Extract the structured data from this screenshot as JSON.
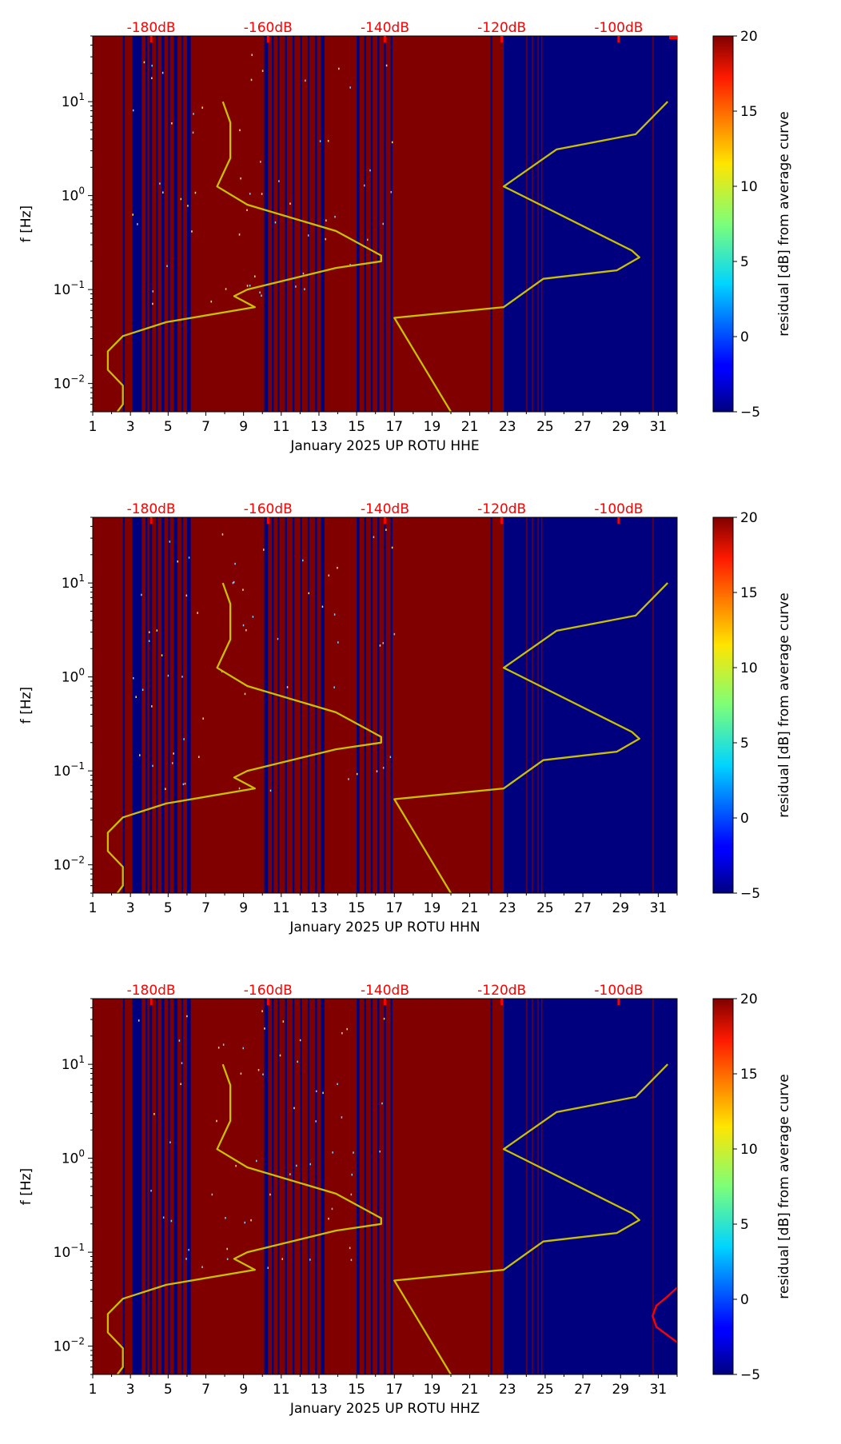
{
  "chart_data": [
    {
      "type": "heatmap",
      "name": "HHE",
      "xlabel": "January 2025 UP ROTU  HHE",
      "ylabel": "f [Hz]",
      "x_ticks": [
        "1",
        "3",
        "5",
        "7",
        "9",
        "11",
        "13",
        "15",
        "17",
        "19",
        "21",
        "23",
        "25",
        "27",
        "29",
        "31"
      ],
      "xlim": [
        1,
        32
      ],
      "ylim": [
        0.005,
        50
      ],
      "y_ticks": [
        {
          "value": 0.01,
          "base": "10",
          "exp": "−2"
        },
        {
          "value": 0.1,
          "base": "10",
          "exp": "−1"
        },
        {
          "value": 1,
          "base": "10",
          "exp": "0"
        },
        {
          "value": 10,
          "base": "10",
          "exp": "1"
        }
      ],
      "top_labels": [
        {
          "day": 4.1,
          "label": "-180dB"
        },
        {
          "day": 10.3,
          "label": "-160dB"
        },
        {
          "day": 16.5,
          "label": "-140dB"
        },
        {
          "day": 22.7,
          "label": "-120dB"
        },
        {
          "day": 28.9,
          "label": "-100dB"
        }
      ],
      "colorbar": {
        "label": "residual [dB] from average curve",
        "min": -5,
        "max": 20,
        "ticks": [
          "20",
          "15",
          "10",
          "5",
          "0",
          "−5"
        ]
      },
      "pdf_curve": [
        [
          7.9,
          10
        ],
        [
          8.3,
          6
        ],
        [
          8.3,
          2.5
        ],
        [
          7.6,
          1.25
        ],
        [
          9.2,
          0.8
        ],
        [
          13.9,
          0.42
        ],
        [
          16.3,
          0.23
        ],
        [
          16.3,
          0.2
        ],
        [
          13.9,
          0.17
        ],
        [
          9.2,
          0.1
        ],
        [
          8.5,
          0.085
        ],
        [
          9.6,
          0.065
        ],
        [
          4.9,
          0.045
        ],
        [
          2.6,
          0.032
        ],
        [
          1.8,
          0.022
        ],
        [
          1.8,
          0.014
        ],
        [
          2.6,
          0.0095
        ],
        [
          2.6,
          0.006
        ],
        [
          2.3,
          0.005
        ]
      ],
      "max_curve": [
        [
          31.5,
          10
        ],
        [
          29.8,
          4.5
        ],
        [
          25.6,
          3.1
        ],
        [
          22.8,
          1.25
        ],
        [
          29.6,
          0.26
        ],
        [
          30.0,
          0.22
        ],
        [
          28.8,
          0.16
        ],
        [
          24.9,
          0.13
        ],
        [
          22.8,
          0.065
        ],
        [
          17.0,
          0.05
        ],
        [
          20.0,
          0.005
        ]
      ]
    },
    {
      "type": "heatmap",
      "name": "HHN",
      "xlabel": "January 2025 UP ROTU  HHN",
      "ylabel": "f [Hz]",
      "x_ticks": [
        "1",
        "3",
        "5",
        "7",
        "9",
        "11",
        "13",
        "15",
        "17",
        "19",
        "21",
        "23",
        "25",
        "27",
        "29",
        "31"
      ],
      "xlim": [
        1,
        32
      ],
      "ylim": [
        0.005,
        50
      ],
      "y_ticks": [
        {
          "value": 0.01,
          "base": "10",
          "exp": "−2"
        },
        {
          "value": 0.1,
          "base": "10",
          "exp": "−1"
        },
        {
          "value": 1,
          "base": "10",
          "exp": "0"
        },
        {
          "value": 10,
          "base": "10",
          "exp": "1"
        }
      ],
      "top_labels": [
        {
          "day": 4.1,
          "label": "-180dB"
        },
        {
          "day": 10.3,
          "label": "-160dB"
        },
        {
          "day": 16.5,
          "label": "-140dB"
        },
        {
          "day": 22.7,
          "label": "-120dB"
        },
        {
          "day": 28.9,
          "label": "-100dB"
        }
      ],
      "colorbar": {
        "label": "residual [dB] from average curve",
        "min": -5,
        "max": 20,
        "ticks": [
          "20",
          "15",
          "10",
          "5",
          "0",
          "−5"
        ]
      },
      "pdf_curve": [
        [
          7.9,
          10
        ],
        [
          8.3,
          6
        ],
        [
          8.3,
          2.5
        ],
        [
          7.6,
          1.25
        ],
        [
          9.2,
          0.8
        ],
        [
          13.9,
          0.42
        ],
        [
          16.3,
          0.23
        ],
        [
          16.3,
          0.2
        ],
        [
          13.9,
          0.17
        ],
        [
          9.2,
          0.1
        ],
        [
          8.5,
          0.085
        ],
        [
          9.6,
          0.065
        ],
        [
          4.9,
          0.045
        ],
        [
          2.6,
          0.032
        ],
        [
          1.8,
          0.022
        ],
        [
          1.8,
          0.014
        ],
        [
          2.6,
          0.0095
        ],
        [
          2.6,
          0.006
        ],
        [
          2.3,
          0.005
        ]
      ],
      "max_curve": [
        [
          31.5,
          10
        ],
        [
          29.8,
          4.5
        ],
        [
          25.6,
          3.1
        ],
        [
          22.8,
          1.25
        ],
        [
          29.6,
          0.26
        ],
        [
          30.0,
          0.22
        ],
        [
          28.8,
          0.16
        ],
        [
          24.9,
          0.13
        ],
        [
          22.8,
          0.065
        ],
        [
          17.0,
          0.05
        ],
        [
          20.0,
          0.005
        ]
      ]
    },
    {
      "type": "heatmap",
      "name": "HHZ",
      "xlabel": "January 2025 UP ROTU  HHZ",
      "ylabel": "f [Hz]",
      "x_ticks": [
        "1",
        "3",
        "5",
        "7",
        "9",
        "11",
        "13",
        "15",
        "17",
        "19",
        "21",
        "23",
        "25",
        "27",
        "29",
        "31"
      ],
      "xlim": [
        1,
        32
      ],
      "ylim": [
        0.005,
        50
      ],
      "y_ticks": [
        {
          "value": 0.01,
          "base": "10",
          "exp": "−2"
        },
        {
          "value": 0.1,
          "base": "10",
          "exp": "−1"
        },
        {
          "value": 1,
          "base": "10",
          "exp": "0"
        },
        {
          "value": 10,
          "base": "10",
          "exp": "1"
        }
      ],
      "top_labels": [
        {
          "day": 4.1,
          "label": "-180dB"
        },
        {
          "day": 10.3,
          "label": "-160dB"
        },
        {
          "day": 16.5,
          "label": "-140dB"
        },
        {
          "day": 22.7,
          "label": "-120dB"
        },
        {
          "day": 28.9,
          "label": "-100dB"
        }
      ],
      "colorbar": {
        "label": "residual [dB] from average curve",
        "min": -5,
        "max": 20,
        "ticks": [
          "20",
          "15",
          "10",
          "5",
          "0",
          "−5"
        ]
      },
      "pdf_curve": [
        [
          7.9,
          10
        ],
        [
          8.3,
          6
        ],
        [
          8.3,
          2.5
        ],
        [
          7.6,
          1.25
        ],
        [
          9.2,
          0.8
        ],
        [
          13.9,
          0.42
        ],
        [
          16.3,
          0.23
        ],
        [
          16.3,
          0.2
        ],
        [
          13.9,
          0.17
        ],
        [
          9.2,
          0.1
        ],
        [
          8.5,
          0.085
        ],
        [
          9.6,
          0.065
        ],
        [
          4.9,
          0.045
        ],
        [
          2.6,
          0.032
        ],
        [
          1.8,
          0.022
        ],
        [
          1.8,
          0.014
        ],
        [
          2.6,
          0.0095
        ],
        [
          2.6,
          0.006
        ],
        [
          2.3,
          0.005
        ]
      ],
      "max_curve": [
        [
          31.5,
          10
        ],
        [
          29.8,
          4.5
        ],
        [
          25.6,
          3.1
        ],
        [
          22.8,
          1.25
        ],
        [
          29.6,
          0.26
        ],
        [
          30.0,
          0.22
        ],
        [
          28.8,
          0.16
        ],
        [
          24.9,
          0.13
        ],
        [
          22.8,
          0.065
        ],
        [
          17.0,
          0.05
        ],
        [
          20.0,
          0.005
        ]
      ],
      "extra_curve": [
        [
          32,
          0.042
        ],
        [
          31.5,
          0.034
        ],
        [
          30.9,
          0.027
        ],
        [
          30.7,
          0.021
        ],
        [
          30.9,
          0.016
        ],
        [
          32,
          0.011
        ]
      ]
    }
  ],
  "colors": {
    "heat_high": "#800000",
    "heat_low": "#00007f",
    "curve": "#c8c000",
    "marker": "#ff0000",
    "text": "#000000"
  }
}
